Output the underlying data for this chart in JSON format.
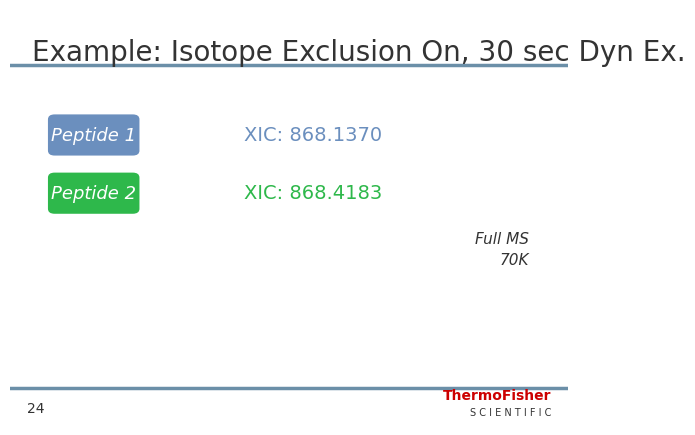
{
  "title": "Example: Isotope Exclusion On, 30 sec Dyn Ex.",
  "title_fontsize": 20,
  "title_color": "#333333",
  "bg_color": "#ffffff",
  "top_line_color": "#6b8fa8",
  "bottom_line_color": "#6b8fa8",
  "peptide1_label": "Peptide 1",
  "peptide1_color": "#6b8fbe",
  "peptide1_xic": "XIC: 868.1370",
  "peptide1_xic_color": "#6b8fbe",
  "peptide2_label": "Peptide 2",
  "peptide2_color": "#2eb84b",
  "peptide2_xic": "XIC: 868.4183",
  "peptide2_xic_color": "#2eb84b",
  "full_ms_line1": "Full MS",
  "full_ms_line2": "70K",
  "full_ms_color": "#333333",
  "footer_num": "24",
  "thermo_fisher_text": "ThermoFisher",
  "thermo_fisher_color": "#cc0000",
  "scientific_text": "S C I E N T I F I C",
  "scientific_color": "#333333"
}
